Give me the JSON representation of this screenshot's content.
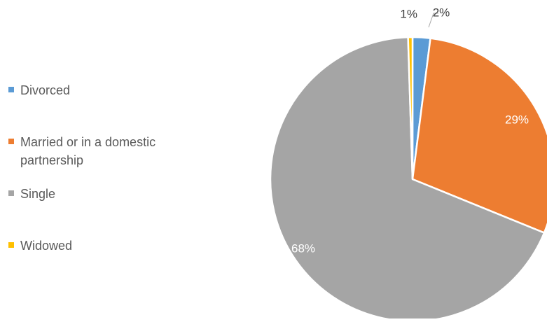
{
  "chart_data": {
    "type": "pie",
    "title": "",
    "slices": [
      {
        "label": "Divorced",
        "value": 2,
        "data_label": "2%",
        "color": "#5b9bd5"
      },
      {
        "label": "Married or in a domestic partnership",
        "value": 29,
        "data_label": "29%",
        "color": "#ed7d31"
      },
      {
        "label": "Single",
        "value": 68,
        "data_label": "68%",
        "color": "#a5a5a5"
      },
      {
        "label": "Widowed",
        "value": 0.5,
        "data_label": "1%",
        "color": "#ffc000"
      }
    ],
    "legend_position": "left",
    "start_angle_deg": 0,
    "direction": "clockwise"
  },
  "legend": {
    "items": [
      {
        "label": "Divorced",
        "color": "#5b9bd5"
      },
      {
        "label": "Married or in a domestic partnership",
        "color": "#ed7d31"
      },
      {
        "label": "Single",
        "color": "#a5a5a5"
      },
      {
        "label": "Widowed",
        "color": "#ffc000"
      }
    ]
  }
}
